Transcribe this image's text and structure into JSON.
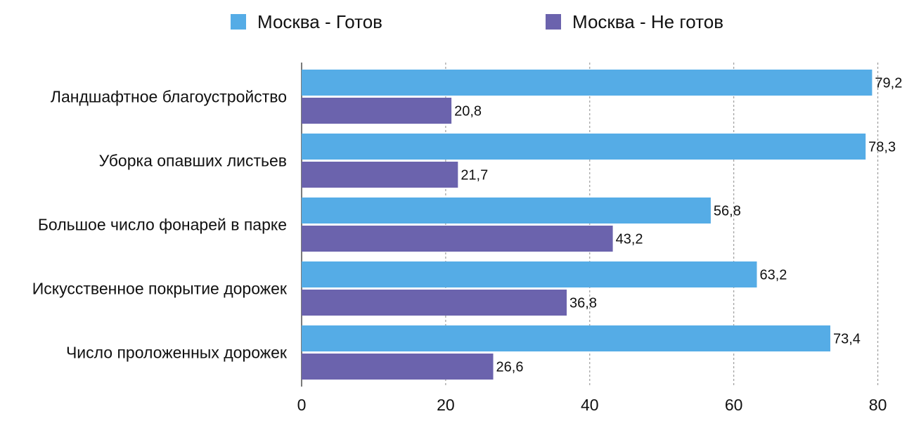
{
  "chart_data": {
    "type": "bar",
    "orientation": "horizontal",
    "categories": [
      "Ландшафтное благоустройство",
      "Уборка опавших листьев",
      "Большое число фонарей в парке",
      "Искусственное покрытие дорожек",
      "Число проложенных дорожек"
    ],
    "series": [
      {
        "name": "Москва - Готов",
        "color": "#55ace6",
        "values": [
          79.2,
          78.3,
          56.8,
          63.2,
          73.4
        ],
        "labels": [
          "79,2",
          "78,3",
          "56,8",
          "63,2",
          "73,4"
        ]
      },
      {
        "name": "Москва - Не готов",
        "color": "#6b63ad",
        "values": [
          20.8,
          21.7,
          43.2,
          36.8,
          26.6
        ],
        "labels": [
          "20,8",
          "21,7",
          "43,2",
          "36,8",
          "26,6"
        ]
      }
    ],
    "xlim": [
      0,
      80
    ],
    "x_ticks": [
      "0",
      "20",
      "40",
      "60",
      "80"
    ],
    "grid": "vertical-dashed",
    "legend_position": "top"
  }
}
